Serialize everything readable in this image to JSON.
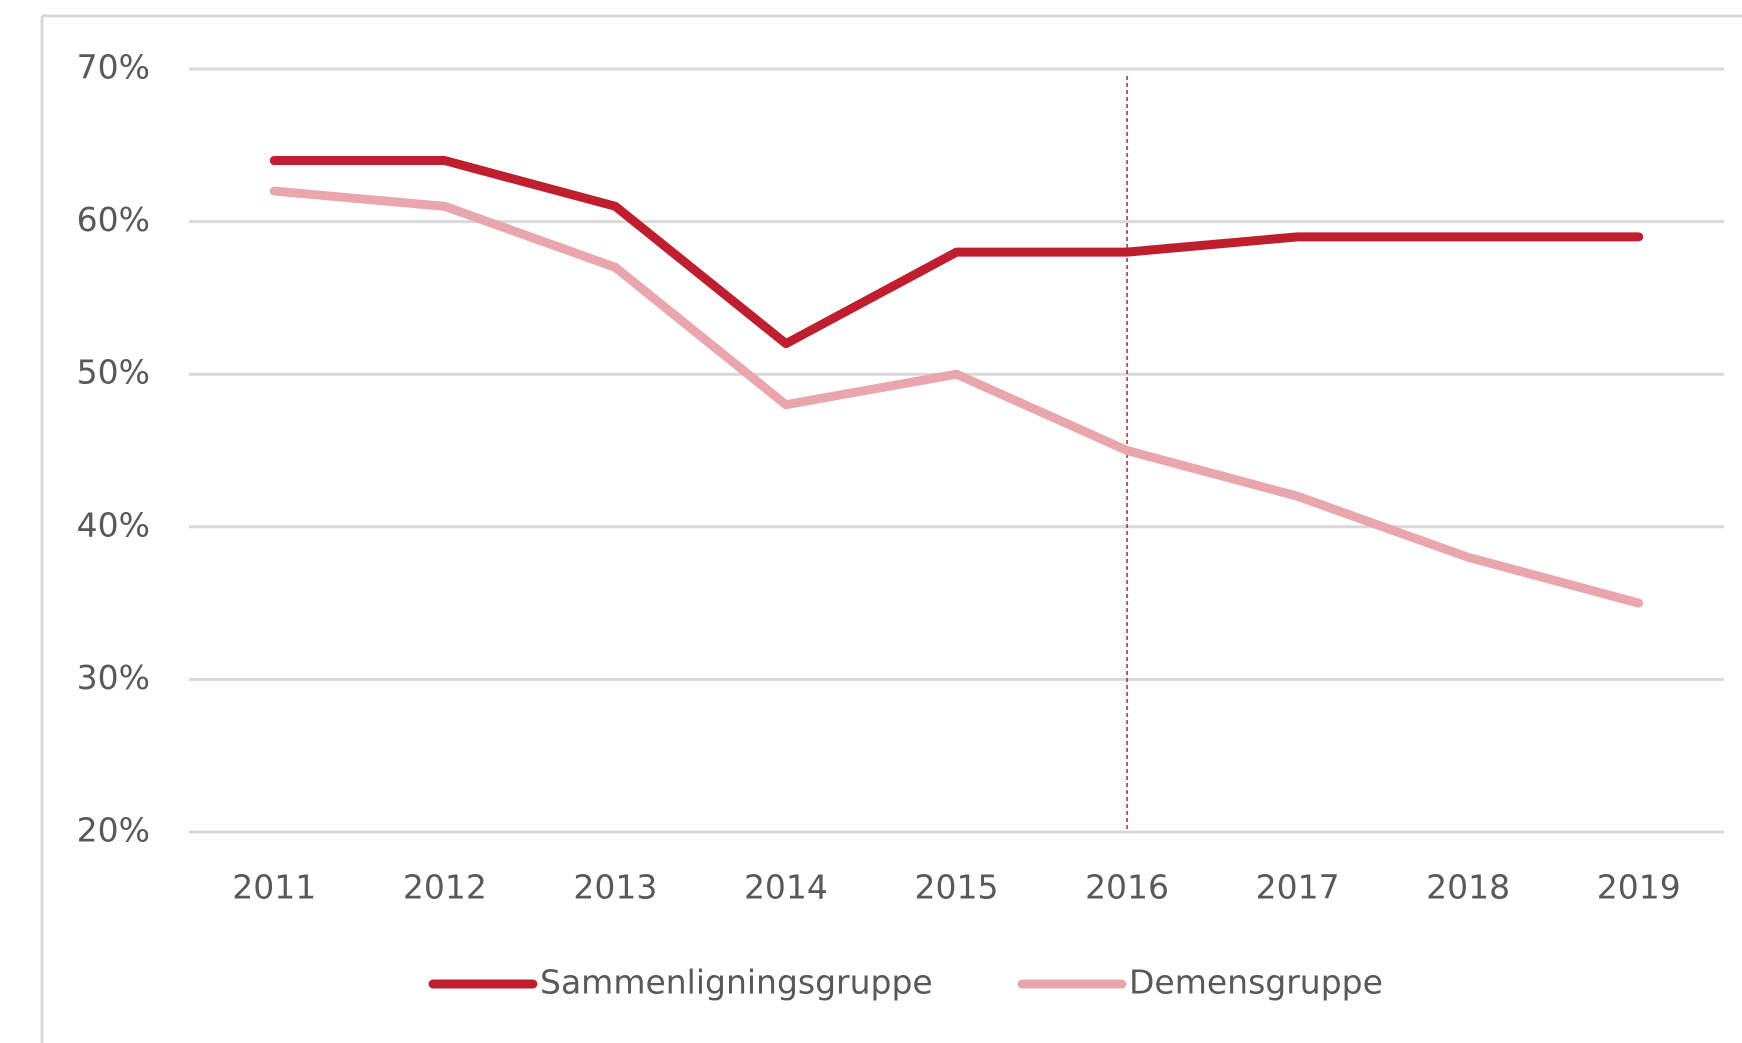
{
  "chart_data": {
    "type": "line",
    "categories": [
      "2011",
      "2012",
      "2013",
      "2014",
      "2015",
      "2016",
      "2017",
      "2018",
      "2019"
    ],
    "series": [
      {
        "name": "Sammenligningsgruppe",
        "color": "#be1e2d",
        "values": [
          64,
          64,
          61,
          52,
          58,
          58,
          59,
          59,
          59
        ]
      },
      {
        "name": "Demensgruppe",
        "color": "#e9a6ac",
        "values": [
          62,
          61,
          57,
          48,
          50,
          45,
          42,
          38,
          35
        ]
      }
    ],
    "ylim": [
      20,
      70
    ],
    "yticks": [
      {
        "value": 20,
        "label": "20%"
      },
      {
        "value": 30,
        "label": "30%"
      },
      {
        "value": 40,
        "label": "40%"
      },
      {
        "value": 50,
        "label": "50%"
      },
      {
        "value": 60,
        "label": "60%"
      },
      {
        "value": 70,
        "label": "70%"
      }
    ],
    "grid": true,
    "vline_category": "2016",
    "vline_color": "#be1e2d",
    "legend": "bottom"
  }
}
